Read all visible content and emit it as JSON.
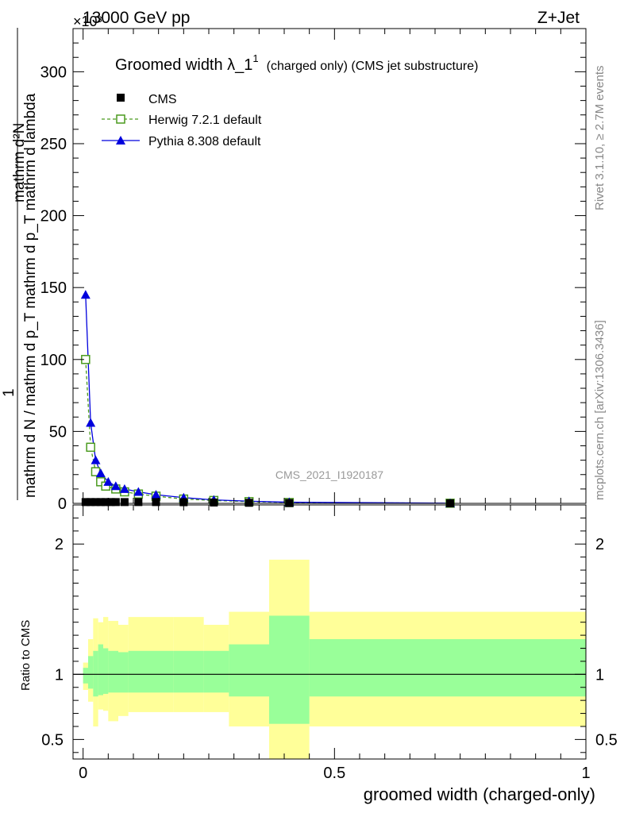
{
  "header": {
    "energy_label": "13000 GeV pp",
    "process_label": "Z+Jet",
    "exponent_label": "×10³"
  },
  "side_labels": {
    "rivet": "Rivet 3.1.10, ≥ 2.7M events",
    "mcplots": "mcplots.cern.ch [arXiv:1306.3436]"
  },
  "chart_data": [
    {
      "type": "line",
      "title_main": "Groomed width λ_1",
      "title_sup": "1",
      "title_note": "(charged only) (CMS jet substructure)",
      "watermark": "CMS_2021_I1920187",
      "ylabel_numerator": "1",
      "ylabel_denominator": "mathrm d N / mathrm d p_T mathrm d p_T mathrm d lambda",
      "ylabel_top": "mathrm d²N",
      "xlim": [
        -0.02,
        1.0
      ],
      "ylim": [
        0,
        330
      ],
      "y_ticks": [
        0,
        50,
        100,
        150,
        200,
        250,
        300
      ],
      "legend_position": "top-left",
      "series": [
        {
          "name": "CMS",
          "color": "#000000",
          "marker": "square-filled",
          "x": [
            0.005,
            0.015,
            0.025,
            0.035,
            0.045,
            0.055,
            0.065,
            0.0825,
            0.11,
            0.145,
            0.2,
            0.26,
            0.33,
            0.41,
            0.73
          ],
          "y": [
            0.9,
            0.9,
            0.9,
            0.9,
            0.9,
            0.9,
            0.9,
            0.9,
            0.9,
            0.9,
            0.8,
            0.6,
            0.4,
            0.2,
            0.05
          ]
        },
        {
          "name": "Herwig 7.2.1 default",
          "color": "#4a9a1e",
          "marker": "square-open",
          "line": "dashed",
          "x": [
            0.005,
            0.015,
            0.025,
            0.035,
            0.045,
            0.065,
            0.0825,
            0.11,
            0.145,
            0.2,
            0.26,
            0.33,
            0.41,
            0.73
          ],
          "y": [
            100,
            39,
            22,
            15,
            12,
            10,
            8,
            6.5,
            5,
            3,
            2,
            1.2,
            0.6,
            0.1
          ]
        },
        {
          "name": "Pythia 8.308 default",
          "color": "#0000dd",
          "marker": "triangle-filled",
          "line": "solid",
          "x": [
            0.005,
            0.015,
            0.025,
            0.035,
            0.05,
            0.065,
            0.0825,
            0.11,
            0.145,
            0.2,
            0.26,
            0.33,
            0.41,
            0.73
          ],
          "y": [
            145,
            56,
            30,
            21,
            15,
            12,
            10,
            8,
            6,
            4,
            2.4,
            1.5,
            0.8,
            0.15
          ]
        }
      ]
    },
    {
      "type": "area",
      "ylabel": "Ratio to CMS",
      "xlabel": "groomed width (charged-only)",
      "xlim": [
        -0.02,
        1.0
      ],
      "ylim": [
        0.35,
        2.3
      ],
      "x_ticks": [
        0,
        0.5,
        1
      ],
      "x_tick_labels": [
        "0",
        "0.5",
        "1"
      ],
      "y_ticks": [
        0.5,
        1,
        2
      ],
      "y_tick_labels": [
        "0.5",
        "1",
        "2"
      ],
      "reference_line": 1.0,
      "bands": {
        "bin_edges": [
          0.0,
          0.01,
          0.02,
          0.03,
          0.04,
          0.05,
          0.07,
          0.09,
          0.13,
          0.18,
          0.24,
          0.29,
          0.37,
          0.45,
          1.0
        ],
        "stat_lo": [
          0.93,
          0.89,
          0.83,
          0.84,
          0.85,
          0.86,
          0.86,
          0.86,
          0.86,
          0.86,
          0.86,
          0.83,
          0.62,
          0.83
        ],
        "stat_hi": [
          1.05,
          1.14,
          1.18,
          1.23,
          1.2,
          1.18,
          1.17,
          1.18,
          1.18,
          1.18,
          1.18,
          1.23,
          1.45,
          1.27
        ],
        "total_lo": [
          0.88,
          0.79,
          0.6,
          0.73,
          0.72,
          0.64,
          0.68,
          0.71,
          0.71,
          0.71,
          0.71,
          0.6,
          0.35,
          0.6
        ],
        "total_hi": [
          1.09,
          1.27,
          1.43,
          1.4,
          1.44,
          1.41,
          1.38,
          1.44,
          1.44,
          1.44,
          1.38,
          1.48,
          1.88,
          1.48
        ],
        "stat_color": "#99ff99",
        "total_color": "#ffff99"
      }
    }
  ]
}
